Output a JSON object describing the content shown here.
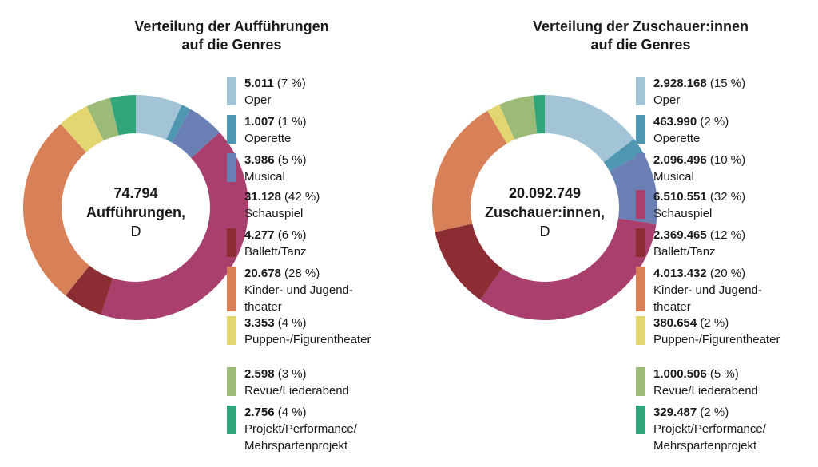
{
  "chart_data": [
    {
      "type": "pie",
      "title_lines": [
        "Verteilung der Aufführungen",
        "auf die Genres"
      ],
      "center": {
        "value": "74.794",
        "unit": "Aufführungen,",
        "country": "D"
      },
      "series": [
        {
          "name": "Oper",
          "value": 5011,
          "value_label": "5.011",
          "pct_label": "(7 %)",
          "color": "#a3c3d6"
        },
        {
          "name": "Operette",
          "value": 1007,
          "value_label": "1.007",
          "pct_label": "(1 %)",
          "color": "#4f97b0"
        },
        {
          "name": "Musical",
          "value": 3986,
          "value_label": "3.986",
          "pct_label": "(5 %)",
          "color": "#6a80b5"
        },
        {
          "name": "Schauspiel",
          "value": 31128,
          "value_label": "31.128",
          "pct_label": "(42 %)",
          "color": "#a83f6d"
        },
        {
          "name": "Ballett/Tanz",
          "value": 4277,
          "value_label": "4.277",
          "pct_label": "(6 %)",
          "color": "#8c2d33"
        },
        {
          "name": "Kinder- und Jugend-theater",
          "label_lines": [
            "Kinder- und Jugend-",
            "theater"
          ],
          "value": 20678,
          "value_label": "20.678",
          "pct_label": "(28 %)",
          "color": "#d88058"
        },
        {
          "name": "Puppen-/Figurentheater",
          "value": 3353,
          "value_label": "3.353",
          "pct_label": "(4 %)",
          "color": "#e3d56f"
        },
        {
          "name": "Revue/Liederabend",
          "value": 2598,
          "value_label": "2.598",
          "pct_label": "(3 %)",
          "color": "#9cbb78"
        },
        {
          "name": "Projekt/Performance/Mehrspartenprojekt",
          "label_lines": [
            "Projekt/Performance/",
            "Mehrspartenprojekt"
          ],
          "value": 2756,
          "value_label": "2.756",
          "pct_label": "(4 %)",
          "color": "#32a47a"
        }
      ]
    },
    {
      "type": "pie",
      "title_lines": [
        "Verteilung der Zuschauer:innen",
        "auf die Genres"
      ],
      "center": {
        "value": "20.092.749",
        "unit": "Zuschauer:innen,",
        "country": "D"
      },
      "series": [
        {
          "name": "Oper",
          "value": 2928168,
          "value_label": "2.928.168",
          "pct_label": "(15 %)",
          "color": "#a3c3d6"
        },
        {
          "name": "Operette",
          "value": 463990,
          "value_label": "463.990",
          "pct_label": "(2 %)",
          "color": "#4f97b0"
        },
        {
          "name": "Musical",
          "value": 2096496,
          "value_label": "2.096.496",
          "pct_label": "(10 %)",
          "color": "#6a80b5"
        },
        {
          "name": "Schauspiel",
          "value": 6510551,
          "value_label": "6.510.551",
          "pct_label": "(32 %)",
          "color": "#a83f6d"
        },
        {
          "name": "Ballett/Tanz",
          "value": 2369465,
          "value_label": "2.369.465",
          "pct_label": "(12 %)",
          "color": "#8c2d33"
        },
        {
          "name": "Kinder- und Jugend-theater",
          "label_lines": [
            "Kinder- und Jugend-",
            "theater"
          ],
          "value": 4013432,
          "value_label": "4.013.432",
          "pct_label": "(20 %)",
          "color": "#d88058"
        },
        {
          "name": "Puppen-/Figurentheater",
          "value": 380654,
          "value_label": "380.654",
          "pct_label": "(2 %)",
          "color": "#e3d56f"
        },
        {
          "name": "Revue/Liederabend",
          "value": 1000506,
          "value_label": "1.000.506",
          "pct_label": "(5 %)",
          "color": "#9cbb78"
        },
        {
          "name": "Projekt/Performance/Mehrspartenprojekt",
          "label_lines": [
            "Projekt/Performance/",
            "Mehrspartenprojekt"
          ],
          "value": 329487,
          "value_label": "329.487",
          "pct_label": "(2 %)",
          "color": "#32a47a"
        }
      ]
    }
  ]
}
